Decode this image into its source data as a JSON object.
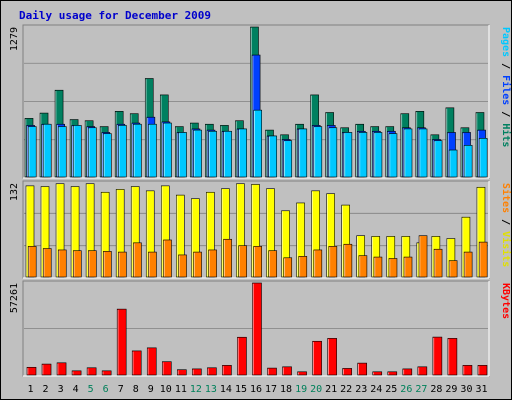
{
  "chart_data": {
    "type": "bar",
    "title": "Daily usage for December 2009",
    "days": [
      "1",
      "2",
      "3",
      "4",
      "5",
      "6",
      "7",
      "8",
      "9",
      "10",
      "11",
      "12",
      "13",
      "14",
      "15",
      "16",
      "17",
      "18",
      "19",
      "20",
      "21",
      "22",
      "23",
      "24",
      "25",
      "26",
      "27",
      "28",
      "29",
      "30",
      "31"
    ],
    "weekend_days": [
      "5",
      "6",
      "12",
      "13",
      "19",
      "20",
      "26",
      "27"
    ],
    "panels": [
      {
        "id": "hits-panel",
        "max_label": "1279",
        "ymax": 1279,
        "right_label": [
          {
            "text": "Pages",
            "color": "#00c8ff"
          },
          {
            "text": " / ",
            "color": "#000000"
          },
          {
            "text": "Files",
            "color": "#0040ff"
          },
          {
            "text": " / ",
            "color": "#000000"
          },
          {
            "text": "Hits",
            "color": "#008060"
          }
        ],
        "series": [
          {
            "name": "Hits",
            "color": "#008060",
            "values": [
              500,
              545,
              740,
              490,
              480,
              430,
              560,
              540,
              840,
              700,
              430,
              460,
              450,
              440,
              480,
              1279,
              400,
              360,
              450,
              700,
              550,
              420,
              450,
              430,
              430,
              540,
              560,
              360,
              590,
              420,
              550
            ]
          },
          {
            "name": "Files",
            "color": "#0040ff",
            "values": [
              440,
              450,
              450,
              440,
              430,
              380,
              450,
              460,
              510,
              470,
              380,
              410,
              400,
              390,
              410,
              1040,
              350,
              320,
              410,
              440,
              440,
              380,
              390,
              390,
              390,
              420,
              420,
              320,
              380,
              380,
              400
            ]
          },
          {
            "name": "Pages",
            "color": "#00c8ff",
            "values": [
              430,
              450,
              430,
              440,
              420,
              370,
              440,
              450,
              450,
              460,
              380,
              400,
              390,
              390,
              410,
              570,
              350,
              310,
              410,
              430,
              420,
              380,
              380,
              380,
              370,
              410,
              410,
              310,
              230,
              270,
              330
            ]
          }
        ]
      },
      {
        "id": "visits-panel",
        "max_label": "132",
        "ymax": 132,
        "right_label": [
          {
            "text": "Sites",
            "color": "#ff8000"
          },
          {
            "text": " / ",
            "color": "#000000"
          },
          {
            "text": "Visits",
            "color": "#e0e000"
          }
        ],
        "series": [
          {
            "name": "Visits",
            "color": "#ffff00",
            "values": [
              128,
              127,
              131,
              127,
              131,
              119,
              123,
              127,
              121,
              128,
              115,
              110,
              119,
              124,
              131,
              130,
              124,
              93,
              104,
              121,
              117,
              101,
              58,
              57,
              57,
              57,
              48,
              57,
              54,
              84,
              126
            ]
          },
          {
            "name": "Sites",
            "color": "#ff8000",
            "values": [
              43,
              40,
              38,
              37,
              37,
              36,
              35,
              48,
              35,
              52,
              31,
              35,
              38,
              53,
              44,
              43,
              37,
              27,
              29,
              38,
              43,
              46,
              30,
              28,
              26,
              28,
              58,
              39,
              23,
              35,
              49
            ]
          }
        ]
      },
      {
        "id": "kbytes-panel",
        "max_label": "57261",
        "ymax": 57261,
        "right_label": [
          {
            "text": "KBytes",
            "color": "#ff0000"
          }
        ],
        "series": [
          {
            "name": "KBytes",
            "color": "#ff0000",
            "values": [
              4800,
              6800,
              7600,
              2600,
              4500,
              2600,
              41000,
              15000,
              16900,
              8300,
              3300,
              3800,
              4500,
              6000,
              23500,
              57261,
              4300,
              5100,
              2000,
              21000,
              22800,
              4100,
              7400,
              2000,
              2000,
              3800,
              5100,
              23600,
              22800,
              6000,
              6000
            ]
          }
        ]
      }
    ]
  }
}
